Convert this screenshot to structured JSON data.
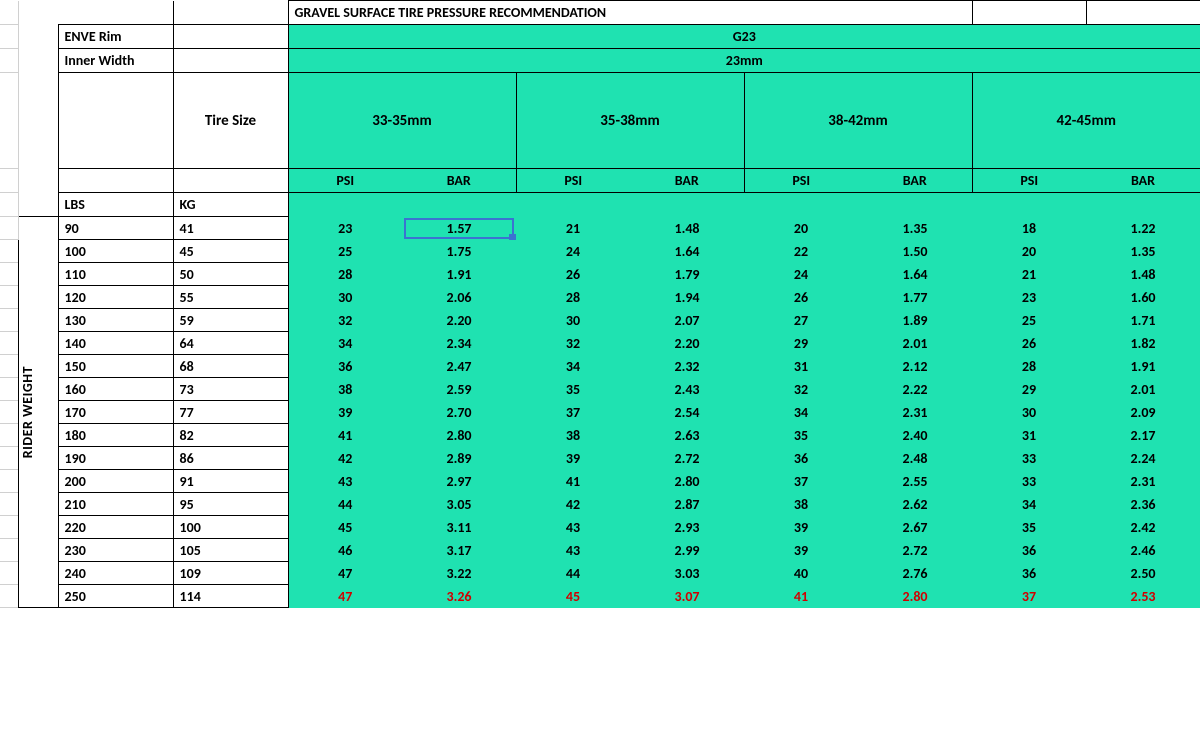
{
  "colors": {
    "green": "#1fe2b1",
    "red": "#d00000",
    "grid": "#d0d0d0",
    "selection": "#3b73d1"
  },
  "title": "GRAVEL SURFACE TIRE PRESSURE RECOMMENDATION",
  "header": {
    "rim_label": "ENVE Rim",
    "rim_value": "G23",
    "width_label": "Inner Width",
    "width_value": "23mm",
    "size_label": "Tire Size",
    "sizes": [
      "33-35mm",
      "35-38mm",
      "38-42mm",
      "42-45mm"
    ],
    "unit_psi": "PSI",
    "unit_bar": "BAR"
  },
  "axis": {
    "lbs_label": "LBS",
    "kg_label": "KG",
    "side_label": "RIDER WEIGHT"
  },
  "rows": [
    {
      "lbs": "90",
      "kg": "41",
      "v": [
        "23",
        "1.57",
        "21",
        "1.48",
        "20",
        "1.35",
        "18",
        "1.22"
      ],
      "red": false
    },
    {
      "lbs": "100",
      "kg": "45",
      "v": [
        "25",
        "1.75",
        "24",
        "1.64",
        "22",
        "1.50",
        "20",
        "1.35"
      ],
      "red": false
    },
    {
      "lbs": "110",
      "kg": "50",
      "v": [
        "28",
        "1.91",
        "26",
        "1.79",
        "24",
        "1.64",
        "21",
        "1.48"
      ],
      "red": false
    },
    {
      "lbs": "120",
      "kg": "55",
      "v": [
        "30",
        "2.06",
        "28",
        "1.94",
        "26",
        "1.77",
        "23",
        "1.60"
      ],
      "red": false
    },
    {
      "lbs": "130",
      "kg": "59",
      "v": [
        "32",
        "2.20",
        "30",
        "2.07",
        "27",
        "1.89",
        "25",
        "1.71"
      ],
      "red": false
    },
    {
      "lbs": "140",
      "kg": "64",
      "v": [
        "34",
        "2.34",
        "32",
        "2.20",
        "29",
        "2.01",
        "26",
        "1.82"
      ],
      "red": false
    },
    {
      "lbs": "150",
      "kg": "68",
      "v": [
        "36",
        "2.47",
        "34",
        "2.32",
        "31",
        "2.12",
        "28",
        "1.91"
      ],
      "red": false
    },
    {
      "lbs": "160",
      "kg": "73",
      "v": [
        "38",
        "2.59",
        "35",
        "2.43",
        "32",
        "2.22",
        "29",
        "2.01"
      ],
      "red": false
    },
    {
      "lbs": "170",
      "kg": "77",
      "v": [
        "39",
        "2.70",
        "37",
        "2.54",
        "34",
        "2.31",
        "30",
        "2.09"
      ],
      "red": false
    },
    {
      "lbs": "180",
      "kg": "82",
      "v": [
        "41",
        "2.80",
        "38",
        "2.63",
        "35",
        "2.40",
        "31",
        "2.17"
      ],
      "red": false
    },
    {
      "lbs": "190",
      "kg": "86",
      "v": [
        "42",
        "2.89",
        "39",
        "2.72",
        "36",
        "2.48",
        "33",
        "2.24"
      ],
      "red": false
    },
    {
      "lbs": "200",
      "kg": "91",
      "v": [
        "43",
        "2.97",
        "41",
        "2.80",
        "37",
        "2.55",
        "33",
        "2.31"
      ],
      "red": false
    },
    {
      "lbs": "210",
      "kg": "95",
      "v": [
        "44",
        "3.05",
        "42",
        "2.87",
        "38",
        "2.62",
        "34",
        "2.36"
      ],
      "red": false
    },
    {
      "lbs": "220",
      "kg": "100",
      "v": [
        "45",
        "3.11",
        "43",
        "2.93",
        "39",
        "2.67",
        "35",
        "2.42"
      ],
      "red": false
    },
    {
      "lbs": "230",
      "kg": "105",
      "v": [
        "46",
        "3.17",
        "43",
        "2.99",
        "39",
        "2.72",
        "36",
        "2.46"
      ],
      "red": false
    },
    {
      "lbs": "240",
      "kg": "109",
      "v": [
        "47",
        "3.22",
        "44",
        "3.03",
        "40",
        "2.76",
        "36",
        "2.50"
      ],
      "red": false
    },
    {
      "lbs": "250",
      "kg": "114",
      "v": [
        "47",
        "3.26",
        "45",
        "3.07",
        "41",
        "2.80",
        "37",
        "2.53"
      ],
      "red": true
    }
  ],
  "selection": {
    "row": 0,
    "col": 1
  }
}
